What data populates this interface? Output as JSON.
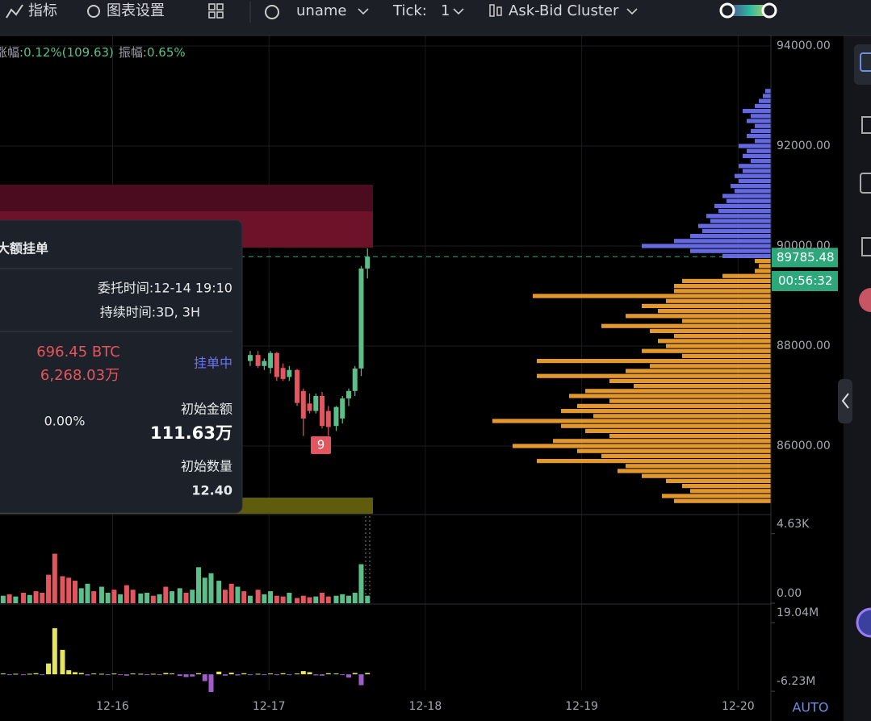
{
  "toolbar": {
    "indicators": "指标",
    "chart_settings": "图表设置",
    "symbol": "uname",
    "tick_label": "Tick:",
    "tick": "1",
    "cluster": "Ask-Bid Cluster"
  },
  "info": {
    "change_label": "涨幅:",
    "change": "0.12%(109.63)",
    "amplitude_label": "振幅:",
    "amplitude": "0.65%"
  },
  "panel": {
    "title": "大额挂单",
    "order_time": "委托时间:12-14 19:10",
    "duration": "持续时间:3D, 3H",
    "amount_btc": "696.45 BTC",
    "amount_cny": "6,268.03万",
    "status": "挂单中",
    "percent": "0.00%",
    "initial_amount_label": "初始金额",
    "initial_amount": "111.63万",
    "initial_qty_label": "初始数量",
    "initial_qty": "12.40"
  },
  "marker": "9",
  "timer": "00:56:32",
  "auto": "AUTO",
  "chart_data": [
    {
      "type": "candlestick",
      "x": [
        16.88,
        16.93,
        16.97,
        17.01,
        17.05,
        17.09,
        17.13,
        17.18,
        17.22,
        17.26,
        17.3,
        17.34,
        17.38,
        17.43,
        17.47,
        17.51,
        17.55,
        17.59,
        17.63
      ],
      "open": [
        87700,
        87820,
        87600,
        87560,
        87860,
        87560,
        87380,
        87520,
        87100,
        86850,
        86700,
        87000,
        86700,
        86400,
        86550,
        86950,
        87100,
        87550,
        89550
      ],
      "high": [
        87900,
        87900,
        87750,
        87900,
        87880,
        87650,
        87600,
        87540,
        87150,
        87050,
        87050,
        87080,
        86800,
        86800,
        87000,
        87150,
        87600,
        89600,
        89950
      ],
      "low": [
        87600,
        87560,
        87520,
        87450,
        87300,
        87300,
        87300,
        86800,
        86200,
        86650,
        86650,
        86350,
        86200,
        86300,
        86450,
        86800,
        87000,
        87400,
        89350
      ],
      "close": [
        87820,
        87600,
        87700,
        87860,
        87380,
        87340,
        87520,
        86860,
        86550,
        86700,
        87000,
        86400,
        86380,
        86780,
        86950,
        87100,
        87550,
        89550,
        89785.48
      ],
      "up_color": "#5cbf8a",
      "down_color": "#e3555f",
      "current_price": 89785.48,
      "xlim": [
        15.28,
        20.21
      ],
      "xticks": [
        {
          "value": 16,
          "label": "12-16"
        },
        {
          "value": 17,
          "label": "12-17"
        },
        {
          "value": 18,
          "label": "12-18"
        },
        {
          "value": 19,
          "label": "12-19"
        },
        {
          "value": 20,
          "label": "12-20"
        }
      ],
      "ylim": [
        84645,
        94210
      ],
      "yticks": [
        {
          "value": 86000,
          "label": "86000.00"
        },
        {
          "value": 88000,
          "label": "88000.00"
        },
        {
          "value": 90000,
          "label": "90000.00"
        },
        {
          "value": 92000,
          "label": "92000.00"
        },
        {
          "value": 94000,
          "label": "94000.00"
        }
      ],
      "grid": true
    },
    {
      "type": "bar",
      "x": [
        15.3,
        15.34,
        15.38,
        15.43,
        15.47,
        15.51,
        15.55,
        15.59,
        15.63,
        15.68,
        15.72,
        15.76,
        15.8,
        15.84,
        15.88,
        15.93,
        15.97,
        16.01,
        16.05,
        16.09,
        16.13,
        16.18,
        16.22,
        16.26,
        16.3,
        16.34,
        16.38,
        16.43,
        16.47,
        16.51,
        16.55,
        16.59,
        16.63,
        16.68,
        16.72,
        16.76,
        16.8,
        16.84,
        16.88,
        16.93,
        16.97,
        17.01,
        17.05,
        17.09,
        17.13,
        17.18,
        17.22,
        17.26,
        17.3,
        17.34,
        17.38,
        17.43,
        17.47,
        17.51,
        17.55,
        17.59,
        17.63
      ],
      "values": [
        0.5,
        0.6,
        0.45,
        0.7,
        0.55,
        0.8,
        0.7,
        1.9,
        3.3,
        1.8,
        1.7,
        1.5,
        1.0,
        1.3,
        0.8,
        1.1,
        0.7,
        0.9,
        0.6,
        1.2,
        0.9,
        0.65,
        0.7,
        0.5,
        0.6,
        1.1,
        0.8,
        1.0,
        0.7,
        0.9,
        2.4,
        1.7,
        2.0,
        1.5,
        0.9,
        1.3,
        1.1,
        0.8,
        0.5,
        0.9,
        0.6,
        0.8,
        0.5,
        0.45,
        0.7,
        0.35,
        0.5,
        0.4,
        0.45,
        0.7,
        0.45,
        0.5,
        0.6,
        0.5,
        0.7,
        2.6,
        0.5
      ],
      "colors": [
        "#5cbf8a",
        "#e3555f",
        "#5cbf8a",
        "#e3555f",
        "#5cbf8a",
        "#e3555f",
        "#e3555f",
        "#e3555f",
        "#e3555f",
        "#e3555f",
        "#e3555f",
        "#e3555f",
        "#5cbf8a",
        "#5cbf8a",
        "#e3555f",
        "#5cbf8a",
        "#5cbf8a",
        "#e3555f",
        "#5cbf8a",
        "#e3555f",
        "#e3555f",
        "#5cbf8a",
        "#5cbf8a",
        "#e3555f",
        "#5cbf8a",
        "#e3555f",
        "#5cbf8a",
        "#5cbf8a",
        "#e3555f",
        "#5cbf8a",
        "#5cbf8a",
        "#5cbf8a",
        "#5cbf8a",
        "#5cbf8a",
        "#e3555f",
        "#e3555f",
        "#5cbf8a",
        "#e3555f",
        "#5cbf8a",
        "#e3555f",
        "#5cbf8a",
        "#5cbf8a",
        "#e3555f",
        "#e3555f",
        "#5cbf8a",
        "#e3555f",
        "#e3555f",
        "#e3555f",
        "#5cbf8a",
        "#e3555f",
        "#e3555f",
        "#5cbf8a",
        "#5cbf8a",
        "#5cbf8a",
        "#5cbf8a",
        "#5cbf8a",
        "#5cbf8a"
      ],
      "ylim": [
        0,
        5.8
      ],
      "yticks": [
        {
          "value": 0,
          "label": "0.00"
        },
        {
          "value": 4.63,
          "label": "4.63K"
        }
      ]
    },
    {
      "type": "bar",
      "x": [
        15.3,
        15.34,
        15.38,
        15.43,
        15.47,
        15.51,
        15.55,
        15.59,
        15.63,
        15.68,
        15.72,
        15.76,
        15.8,
        15.84,
        15.88,
        15.93,
        15.97,
        16.01,
        16.05,
        16.09,
        16.13,
        16.18,
        16.22,
        16.26,
        16.3,
        16.34,
        16.38,
        16.43,
        16.47,
        16.51,
        16.55,
        16.59,
        16.63,
        16.68,
        16.72,
        16.76,
        16.8,
        16.84,
        16.88,
        16.93,
        16.97,
        17.01,
        17.05,
        17.09,
        17.13,
        17.18,
        17.22,
        17.26,
        17.3,
        17.34,
        17.38,
        17.43,
        17.47,
        17.51,
        17.55,
        17.59,
        17.63
      ],
      "values": [
        0.3,
        -0.2,
        0.2,
        -0.3,
        0.2,
        0.4,
        -0.3,
        4.0,
        17.0,
        9.0,
        1.5,
        0.8,
        0.5,
        -0.4,
        0.3,
        0.2,
        -0.2,
        0.3,
        -0.2,
        -0.5,
        0.3,
        0.2,
        -0.2,
        0.2,
        -0.3,
        0.5,
        0.3,
        -0.6,
        -1.0,
        -0.8,
        0.4,
        -2.5,
        -6.5,
        1.0,
        -0.5,
        0.6,
        -0.4,
        0.4,
        -0.3,
        0.2,
        -0.2,
        0.3,
        -0.3,
        0.4,
        -0.3,
        0.3,
        1.2,
        0.8,
        -0.4,
        -0.5,
        0.4,
        0.3,
        -0.3,
        -1.2,
        0.5,
        -4.0,
        0.5
      ],
      "pos_color": "#e6e65a",
      "neg_color": "#a05cc8",
      "ylim": [
        -17.2,
        25.6
      ],
      "yticks": [
        {
          "value": -6.23,
          "label": "-6.23M"
        },
        {
          "value": 19.04,
          "label": "19.04M"
        }
      ]
    },
    {
      "type": "profile",
      "prices": [
        93100,
        93000,
        92900,
        92800,
        92700,
        92600,
        92500,
        92400,
        92300,
        92200,
        92100,
        92000,
        91900,
        91800,
        91700,
        91600,
        91500,
        91400,
        91300,
        91200,
        91100,
        91000,
        90900,
        90800,
        90700,
        90600,
        90500,
        90400,
        90300,
        90200,
        90100,
        90000,
        89900,
        89800,
        89700,
        89600,
        89500,
        89400,
        89300,
        89200,
        89100,
        89000,
        88900,
        88800,
        88700,
        88600,
        88500,
        88400,
        88300,
        88200,
        88100,
        88000,
        87900,
        87800,
        87700,
        87600,
        87500,
        87400,
        87300,
        87200,
        87100,
        87000,
        86900,
        86800,
        86700,
        86600,
        86500,
        86400,
        86300,
        86200,
        86100,
        86000,
        85900,
        85800,
        85700,
        85600,
        85500,
        85400,
        85300,
        85200,
        85100,
        85000,
        84900
      ],
      "sizes": [
        7,
        10,
        15,
        20,
        35,
        25,
        30,
        20,
        25,
        30,
        20,
        40,
        30,
        35,
        25,
        40,
        35,
        45,
        40,
        50,
        45,
        60,
        55,
        70,
        65,
        80,
        75,
        90,
        85,
        100,
        120,
        160,
        100,
        60,
        20,
        15,
        20,
        60,
        110,
        120,
        120,
        295,
        130,
        160,
        140,
        180,
        110,
        210,
        150,
        120,
        140,
        130,
        160,
        110,
        290,
        150,
        180,
        290,
        200,
        170,
        230,
        250,
        200,
        240,
        260,
        220,
        345,
        260,
        230,
        200,
        270,
        320,
        240,
        210,
        290,
        180,
        190,
        160,
        130,
        110,
        100,
        135,
        120
      ],
      "xlim": [
        0,
        350
      ],
      "ask_color": "#6c72f5",
      "bid_color": "#f6a531"
    }
  ]
}
